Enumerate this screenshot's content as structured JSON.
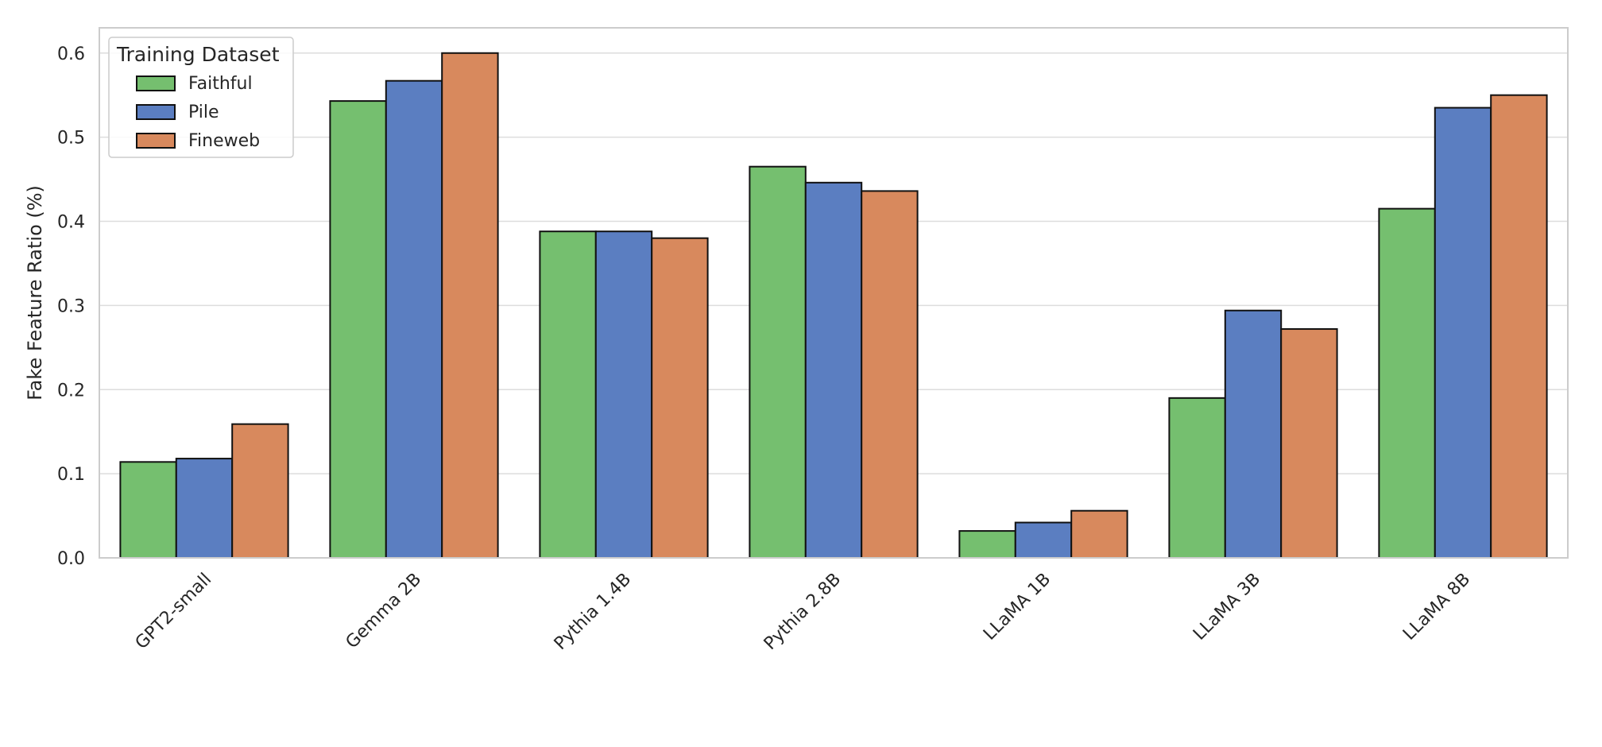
{
  "chart_data": {
    "type": "bar",
    "title": "",
    "xlabel": "",
    "ylabel": "Fake Feature Ratio (%)",
    "ylim": [
      0,
      0.63
    ],
    "yticks": [
      0.0,
      0.1,
      0.2,
      0.3,
      0.4,
      0.5,
      0.6
    ],
    "ytick_labels": [
      "0.0",
      "0.1",
      "0.2",
      "0.3",
      "0.4",
      "0.5",
      "0.6"
    ],
    "grid": true,
    "categories": [
      "GPT2-small",
      "Gemma 2B",
      "Pythia 1.4B",
      "Pythia 2.8B",
      "LLaMA 1B",
      "LLaMA 3B",
      "LLaMA 8B"
    ],
    "legend": {
      "title": "Training Dataset",
      "placement": "upper-left"
    },
    "series": [
      {
        "name": "Faithful",
        "color": "#75bf6f",
        "values": [
          0.114,
          0.543,
          0.388,
          0.465,
          0.032,
          0.19,
          0.415
        ]
      },
      {
        "name": "Pile",
        "color": "#5b7ec1",
        "values": [
          0.118,
          0.567,
          0.388,
          0.446,
          0.042,
          0.294,
          0.535
        ]
      },
      {
        "name": "Fineweb",
        "color": "#d8895d",
        "values": [
          0.159,
          0.6,
          0.38,
          0.436,
          0.056,
          0.272,
          0.55
        ]
      }
    ]
  }
}
